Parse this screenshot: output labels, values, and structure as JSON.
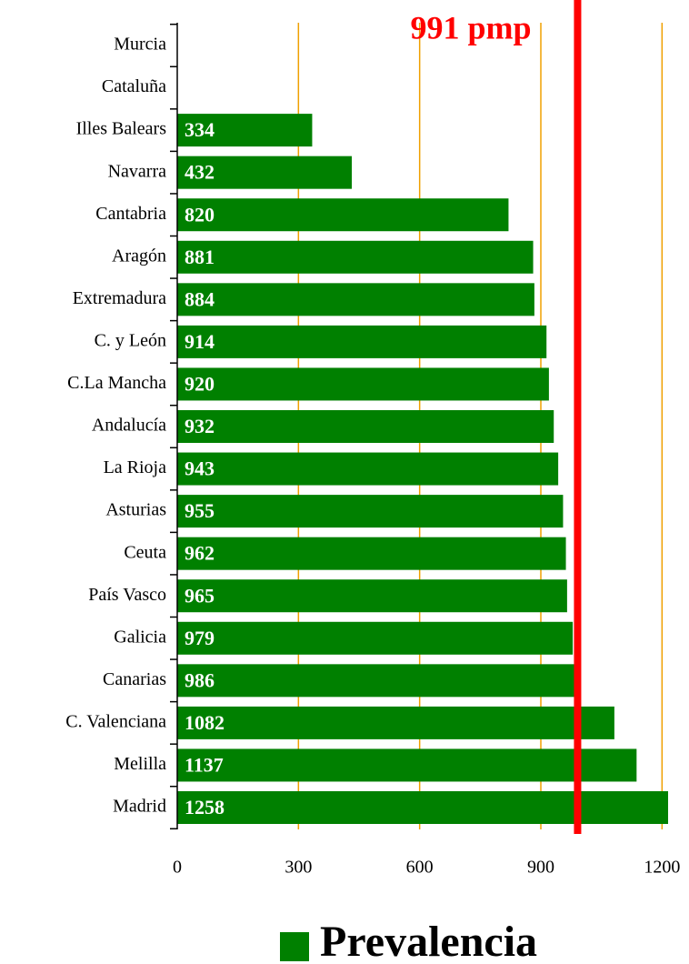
{
  "chart_data": {
    "type": "barh",
    "categories": [
      "Murcia",
      "Cataluña",
      "Illes Balears",
      "Navarra",
      "Cantabria",
      "Aragón",
      "Extremadura",
      "C. y León",
      "C.La Mancha",
      "Andalucía",
      "La Rioja",
      "Asturias",
      "Ceuta",
      "País Vasco",
      "Galicia",
      "Canarias",
      "C. Valenciana",
      "Melilla",
      "Madrid"
    ],
    "series": [
      {
        "name": "Prevalencia",
        "color": "#008000",
        "values": [
          null,
          null,
          334,
          432,
          820,
          881,
          884,
          914,
          920,
          932,
          943,
          955,
          962,
          965,
          979,
          986,
          1082,
          1137,
          1258
        ]
      }
    ],
    "xlim": [
      0,
      1215
    ],
    "xticks": [
      0,
      300,
      600,
      900,
      1200
    ],
    "grid": true,
    "grid_color": "#f0a000",
    "reference_line": {
      "value": 991,
      "label": "991 pmp",
      "color": "#ff0000"
    },
    "legend": "bottom"
  }
}
